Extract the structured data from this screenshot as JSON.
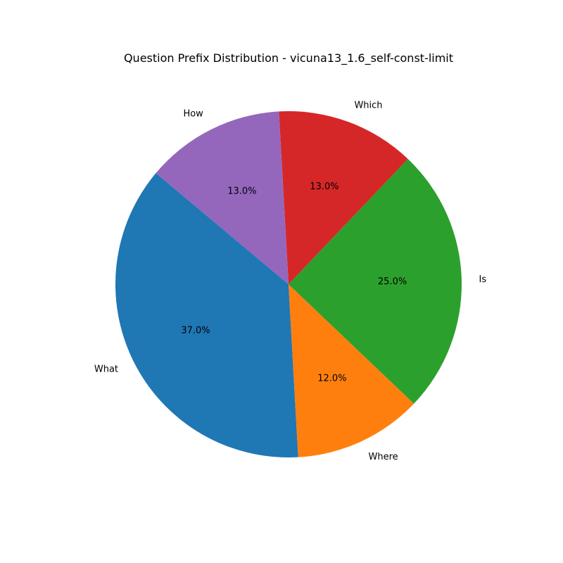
{
  "chart_data": {
    "type": "pie",
    "title": "Question Prefix Distribution - vicuna13_1.6_self-const-limit",
    "slices": [
      {
        "label": "What",
        "value": 37.0,
        "pct_label": "37.0%",
        "color": "#1f77b4"
      },
      {
        "label": "Where",
        "value": 12.0,
        "pct_label": "12.0%",
        "color": "#ff7f0e"
      },
      {
        "label": "Is",
        "value": 25.0,
        "pct_label": "25.0%",
        "color": "#2ca02c"
      },
      {
        "label": "Which",
        "value": 13.0,
        "pct_label": "13.0%",
        "color": "#d62728"
      },
      {
        "label": "How",
        "value": 13.0,
        "pct_label": "13.0%",
        "color": "#9467bd"
      }
    ],
    "start_angle_deg": 140,
    "direction": "counterclockwise"
  }
}
